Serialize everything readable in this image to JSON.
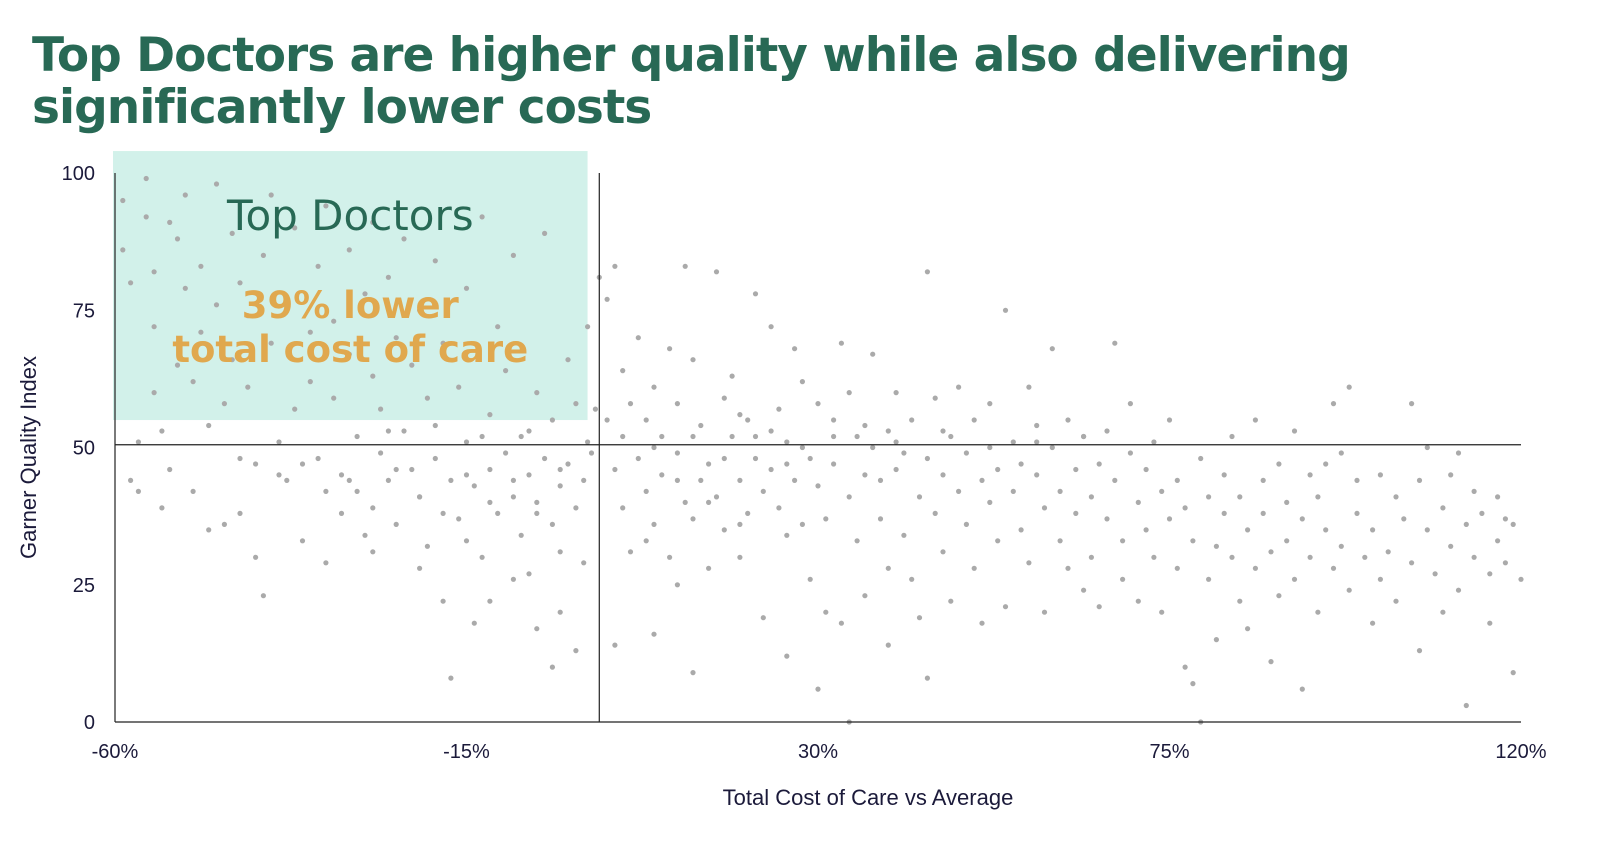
{
  "title": "Top Doctors are higher quality while also delivering significantly lower costs",
  "chart_data": {
    "type": "scatter",
    "xlabel": "Total Cost of Care vs Average",
    "ylabel": "Garner Quality Index",
    "xlim": [
      -60,
      120
    ],
    "ylim": [
      0,
      100
    ],
    "x_ticks": [
      "-60%",
      "-15%",
      "30%",
      "75%",
      "120%"
    ],
    "y_ticks": [
      "0",
      "25",
      "50",
      "75",
      "100"
    ],
    "reference_lines": {
      "x": 2,
      "y": 50.5
    },
    "highlight_region": {
      "label": "Top Doctors",
      "note_line1": "39% lower",
      "note_line2": "total cost of care",
      "x_range": [
        -60,
        0.5
      ],
      "y_range": [
        55,
        104
      ],
      "color": "#d2f1ea"
    },
    "point_color": "#aaaaaa",
    "points": [
      [
        -59,
        95
      ],
      [
        -59,
        86
      ],
      [
        -58,
        80
      ],
      [
        -58,
        44
      ],
      [
        -57,
        42
      ],
      [
        -57,
        51
      ],
      [
        -56,
        92
      ],
      [
        -56,
        99
      ],
      [
        -55,
        60
      ],
      [
        -55,
        82
      ],
      [
        -55,
        72
      ],
      [
        -54,
        39
      ],
      [
        -54,
        53
      ],
      [
        -53,
        91
      ],
      [
        -53,
        46
      ],
      [
        -52,
        88
      ],
      [
        -52,
        65
      ],
      [
        -51,
        96
      ],
      [
        -51,
        79
      ],
      [
        -50,
        62
      ],
      [
        -50,
        42
      ],
      [
        -49,
        83
      ],
      [
        -49,
        71
      ],
      [
        -48,
        54
      ],
      [
        -48,
        35
      ],
      [
        -47,
        98
      ],
      [
        -47,
        76
      ],
      [
        -46,
        58
      ],
      [
        -46,
        36
      ],
      [
        -45,
        89
      ],
      [
        -45,
        66
      ],
      [
        -44,
        80
      ],
      [
        -44,
        38
      ],
      [
        -43,
        61
      ],
      [
        -43,
        74
      ],
      [
        -42,
        47
      ],
      [
        -42,
        30
      ],
      [
        -41,
        85
      ],
      [
        -41,
        23
      ],
      [
        -40,
        96
      ],
      [
        -40,
        69
      ],
      [
        -39,
        51
      ],
      [
        -38,
        77
      ],
      [
        -38,
        44
      ],
      [
        -37,
        90
      ],
      [
        -37,
        57
      ],
      [
        -36,
        33
      ],
      [
        -35,
        71
      ],
      [
        -35,
        62
      ],
      [
        -34,
        83
      ],
      [
        -34,
        48
      ],
      [
        -33,
        94
      ],
      [
        -33,
        29
      ],
      [
        -32,
        59
      ],
      [
        -32,
        73
      ],
      [
        -31,
        45
      ],
      [
        -31,
        38
      ],
      [
        -30,
        86
      ],
      [
        -30,
        67
      ],
      [
        -29,
        52
      ],
      [
        -29,
        42
      ],
      [
        -28,
        78
      ],
      [
        -28,
        34
      ],
      [
        -27,
        63
      ],
      [
        -27,
        91
      ],
      [
        -26,
        49
      ],
      [
        -26,
        57
      ],
      [
        -25,
        81
      ],
      [
        -25,
        44
      ],
      [
        -24,
        70
      ],
      [
        -24,
        36
      ],
      [
        -23,
        88
      ],
      [
        -23,
        53
      ],
      [
        -22,
        46
      ],
      [
        -22,
        65
      ],
      [
        -21,
        41
      ],
      [
        -21,
        75
      ],
      [
        -20,
        59
      ],
      [
        -20,
        32
      ],
      [
        -19,
        84
      ],
      [
        -19,
        48
      ],
      [
        -18,
        22
      ],
      [
        -18,
        69
      ],
      [
        -17,
        44
      ],
      [
        -17,
        8
      ],
      [
        -16,
        61
      ],
      [
        -16,
        37
      ],
      [
        -15,
        79
      ],
      [
        -15,
        51
      ],
      [
        -14,
        43
      ],
      [
        -14,
        18
      ],
      [
        -13,
        92
      ],
      [
        -13,
        30
      ],
      [
        -12,
        56
      ],
      [
        -12,
        46
      ],
      [
        -11,
        72
      ],
      [
        -11,
        38
      ],
      [
        -10,
        49
      ],
      [
        -10,
        64
      ],
      [
        -9,
        41
      ],
      [
        -9,
        85
      ],
      [
        -8,
        52
      ],
      [
        -8,
        34
      ],
      [
        -7,
        45
      ],
      [
        -7,
        27
      ],
      [
        -6,
        60
      ],
      [
        -6,
        40
      ],
      [
        -5,
        48
      ],
      [
        -5,
        89
      ],
      [
        -4,
        36
      ],
      [
        -4,
        55
      ],
      [
        -3,
        43
      ],
      [
        -3,
        20
      ],
      [
        -2,
        66
      ],
      [
        -2,
        47
      ],
      [
        -1,
        39
      ],
      [
        -1,
        58
      ],
      [
        0,
        44
      ],
      [
        0,
        29
      ],
      [
        0.5,
        51
      ],
      [
        -44,
        48
      ],
      [
        -39,
        45
      ],
      [
        -36,
        47
      ],
      [
        -33,
        42
      ],
      [
        -30,
        44
      ],
      [
        -27,
        39
      ],
      [
        -24,
        46
      ],
      [
        -21,
        41
      ],
      [
        -18,
        38
      ],
      [
        -15,
        45
      ],
      [
        -12,
        40
      ],
      [
        -9,
        44
      ],
      [
        -6,
        38
      ],
      [
        -3,
        46
      ],
      [
        -27,
        31
      ],
      [
        -21,
        28
      ],
      [
        -15,
        33
      ],
      [
        -9,
        26
      ],
      [
        -3,
        31
      ],
      [
        -12,
        22
      ],
      [
        -6,
        17
      ],
      [
        -1,
        13
      ],
      [
        -4,
        10
      ],
      [
        -19,
        54
      ],
      [
        -13,
        52
      ],
      [
        -7,
        53
      ],
      [
        -25,
        53
      ],
      [
        1,
        49
      ],
      [
        1.5,
        57
      ],
      [
        0.5,
        72
      ],
      [
        2,
        81
      ],
      [
        3,
        77
      ],
      [
        4,
        46
      ],
      [
        4,
        83
      ],
      [
        5,
        64
      ],
      [
        5,
        39
      ],
      [
        6,
        58
      ],
      [
        6,
        31
      ],
      [
        7,
        48
      ],
      [
        7,
        70
      ],
      [
        8,
        42
      ],
      [
        8,
        55
      ],
      [
        9,
        61
      ],
      [
        9,
        36
      ],
      [
        10,
        45
      ],
      [
        10,
        52
      ],
      [
        11,
        68
      ],
      [
        11,
        30
      ],
      [
        12,
        49
      ],
      [
        12,
        58
      ],
      [
        13,
        83
      ],
      [
        13,
        40
      ],
      [
        14,
        37
      ],
      [
        14,
        66
      ],
      [
        15,
        54
      ],
      [
        15,
        44
      ],
      [
        16,
        47
      ],
      [
        16,
        28
      ],
      [
        17,
        82
      ],
      [
        17,
        41
      ],
      [
        18,
        59
      ],
      [
        18,
        35
      ],
      [
        19,
        52
      ],
      [
        19,
        63
      ],
      [
        20,
        44
      ],
      [
        20,
        30
      ],
      [
        21,
        38
      ],
      [
        21,
        55
      ],
      [
        22,
        48
      ],
      [
        22,
        78
      ],
      [
        23,
        42
      ],
      [
        23,
        19
      ],
      [
        24,
        72
      ],
      [
        24,
        46
      ],
      [
        25,
        39
      ],
      [
        25,
        57
      ],
      [
        26,
        51
      ],
      [
        26,
        34
      ],
      [
        27,
        44
      ],
      [
        27,
        68
      ],
      [
        28,
        36
      ],
      [
        28,
        62
      ],
      [
        29,
        48
      ],
      [
        29,
        26
      ],
      [
        30,
        43
      ],
      [
        30,
        58
      ],
      [
        31,
        37
      ],
      [
        31,
        20
      ],
      [
        32,
        55
      ],
      [
        32,
        47
      ],
      [
        33,
        69
      ],
      [
        33,
        18
      ],
      [
        34,
        41
      ],
      [
        34,
        60
      ],
      [
        35,
        52
      ],
      [
        35,
        33
      ],
      [
        36,
        45
      ],
      [
        36,
        23
      ],
      [
        37,
        50
      ],
      [
        37,
        67
      ],
      [
        38,
        37
      ],
      [
        38,
        44
      ],
      [
        39,
        28
      ],
      [
        39,
        53
      ],
      [
        40,
        46
      ],
      [
        40,
        60
      ],
      [
        41,
        34
      ],
      [
        41,
        49
      ],
      [
        42,
        55
      ],
      [
        42,
        26
      ],
      [
        43,
        41
      ],
      [
        43,
        19
      ],
      [
        44,
        82
      ],
      [
        44,
        48
      ],
      [
        45,
        38
      ],
      [
        45,
        59
      ],
      [
        46,
        45
      ],
      [
        46,
        31
      ],
      [
        47,
        52
      ],
      [
        47,
        22
      ],
      [
        48,
        42
      ],
      [
        48,
        61
      ],
      [
        49,
        36
      ],
      [
        49,
        49
      ],
      [
        50,
        28
      ],
      [
        50,
        55
      ],
      [
        51,
        44
      ],
      [
        51,
        18
      ],
      [
        52,
        58
      ],
      [
        52,
        40
      ],
      [
        53,
        33
      ],
      [
        53,
        46
      ],
      [
        54,
        75
      ],
      [
        54,
        21
      ],
      [
        55,
        42
      ],
      [
        55,
        51
      ],
      [
        56,
        35
      ],
      [
        56,
        47
      ],
      [
        57,
        61
      ],
      [
        57,
        29
      ],
      [
        58,
        45
      ],
      [
        58,
        54
      ],
      [
        59,
        39
      ],
      [
        59,
        20
      ],
      [
        60,
        68
      ],
      [
        60,
        50
      ],
      [
        61,
        33
      ],
      [
        61,
        42
      ],
      [
        62,
        55
      ],
      [
        62,
        28
      ],
      [
        63,
        46
      ],
      [
        63,
        38
      ],
      [
        64,
        52
      ],
      [
        64,
        24
      ],
      [
        65,
        41
      ],
      [
        65,
        30
      ],
      [
        66,
        47
      ],
      [
        66,
        21
      ],
      [
        67,
        53
      ],
      [
        67,
        37
      ],
      [
        68,
        44
      ],
      [
        68,
        69
      ],
      [
        69,
        33
      ],
      [
        69,
        26
      ],
      [
        70,
        49
      ],
      [
        70,
        58
      ],
      [
        71,
        40
      ],
      [
        71,
        22
      ],
      [
        72,
        46
      ],
      [
        72,
        35
      ],
      [
        73,
        30
      ],
      [
        73,
        51
      ],
      [
        74,
        42
      ],
      [
        74,
        20
      ],
      [
        75,
        37
      ],
      [
        75,
        55
      ],
      [
        76,
        28
      ],
      [
        76,
        44
      ],
      [
        77,
        39
      ],
      [
        77,
        10
      ],
      [
        78,
        33
      ],
      [
        78,
        7
      ],
      [
        79,
        48
      ],
      [
        79,
        0
      ],
      [
        80,
        41
      ],
      [
        80,
        26
      ],
      [
        81,
        32
      ],
      [
        81,
        15
      ],
      [
        82,
        45
      ],
      [
        82,
        38
      ],
      [
        83,
        30
      ],
      [
        83,
        52
      ],
      [
        84,
        22
      ],
      [
        84,
        41
      ],
      [
        85,
        35
      ],
      [
        85,
        17
      ],
      [
        86,
        55
      ],
      [
        86,
        28
      ],
      [
        87,
        44
      ],
      [
        87,
        38
      ],
      [
        88,
        31
      ],
      [
        88,
        11
      ],
      [
        89,
        47
      ],
      [
        89,
        23
      ],
      [
        90,
        40
      ],
      [
        90,
        33
      ],
      [
        91,
        53
      ],
      [
        91,
        26
      ],
      [
        92,
        37
      ],
      [
        92,
        6
      ],
      [
        93,
        45
      ],
      [
        93,
        30
      ],
      [
        94,
        20
      ],
      [
        94,
        41
      ],
      [
        95,
        47
      ],
      [
        95,
        35
      ],
      [
        96,
        28
      ],
      [
        96,
        58
      ],
      [
        97,
        49
      ],
      [
        97,
        32
      ],
      [
        98,
        61
      ],
      [
        98,
        24
      ],
      [
        99,
        38
      ],
      [
        99,
        44
      ],
      [
        100,
        30
      ],
      [
        101,
        18
      ],
      [
        101,
        35
      ],
      [
        102,
        45
      ],
      [
        102,
        26
      ],
      [
        103,
        31
      ],
      [
        104,
        41
      ],
      [
        104,
        22
      ],
      [
        105,
        37
      ],
      [
        106,
        58
      ],
      [
        106,
        29
      ],
      [
        107,
        44
      ],
      [
        107,
        13
      ],
      [
        108,
        35
      ],
      [
        108,
        50
      ],
      [
        109,
        27
      ],
      [
        110,
        39
      ],
      [
        110,
        20
      ],
      [
        111,
        45
      ],
      [
        111,
        32
      ],
      [
        112,
        24
      ],
      [
        112,
        49
      ],
      [
        113,
        36
      ],
      [
        113,
        3
      ],
      [
        114,
        30
      ],
      [
        114,
        42
      ],
      [
        115,
        38
      ],
      [
        116,
        27
      ],
      [
        116,
        18
      ],
      [
        117,
        41
      ],
      [
        117,
        33
      ],
      [
        118,
        29
      ],
      [
        118,
        37
      ],
      [
        119,
        36
      ],
      [
        119,
        9
      ],
      [
        120,
        26
      ],
      [
        20,
        56
      ],
      [
        24,
        53
      ],
      [
        28,
        50
      ],
      [
        32,
        52
      ],
      [
        36,
        54
      ],
      [
        40,
        51
      ],
      [
        46,
        53
      ],
      [
        52,
        50
      ],
      [
        58,
        51
      ],
      [
        64,
        52
      ],
      [
        3,
        55
      ],
      [
        5,
        52
      ],
      [
        9,
        50
      ],
      [
        14,
        52
      ],
      [
        18,
        48
      ],
      [
        22,
        52
      ],
      [
        26,
        47
      ],
      [
        12,
        44
      ],
      [
        16,
        40
      ],
      [
        20,
        36
      ],
      [
        8,
        33
      ],
      [
        12,
        25
      ],
      [
        4,
        14
      ],
      [
        9,
        16
      ],
      [
        14,
        9
      ],
      [
        26,
        12
      ],
      [
        30,
        6
      ],
      [
        34,
        0
      ],
      [
        39,
        14
      ],
      [
        44,
        8
      ]
    ]
  }
}
